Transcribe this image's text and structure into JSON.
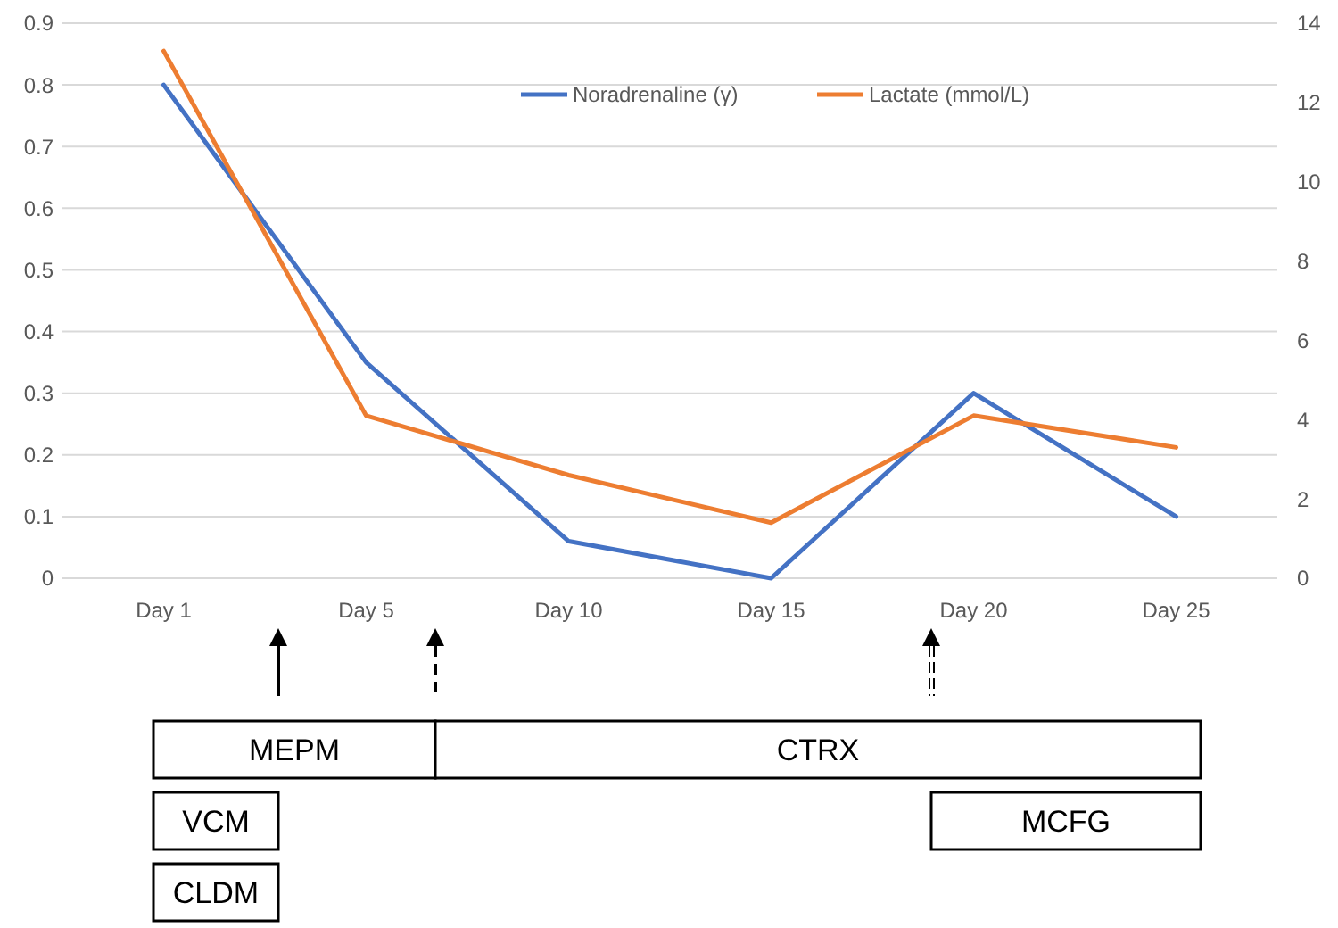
{
  "chart_data": {
    "type": "line",
    "categories": [
      "Day 1",
      "Day 5",
      "Day 10",
      "Day 15",
      "Day 20",
      "Day 25"
    ],
    "series": [
      {
        "name": "Noradrenaline (γ)",
        "color": "#4472c4",
        "values": [
          0.8,
          0.35,
          0.06,
          0,
          0.3,
          0.1
        ]
      },
      {
        "name": "Lactate (mmol/L)",
        "color": "#ed7d31",
        "axis": "y2",
        "values": [
          13.3,
          4.1,
          2.6,
          1.4,
          4.1,
          3.3
        ]
      }
    ],
    "ylim": [
      0,
      0.9
    ],
    "yticks": [
      0,
      0.1,
      0.2,
      0.3,
      0.4,
      0.5,
      0.6,
      0.7,
      0.8,
      0.9
    ],
    "y2lim": [
      0,
      14
    ],
    "y2ticks": [
      0,
      2,
      4,
      6,
      8,
      10,
      12,
      14
    ],
    "grid": "y",
    "legend": "top",
    "marker": "none",
    "line_style": "solid",
    "annotations": [
      "MEPM",
      "CTRX",
      "VCM",
      "CLDM",
      "MCFG"
    ]
  }
}
